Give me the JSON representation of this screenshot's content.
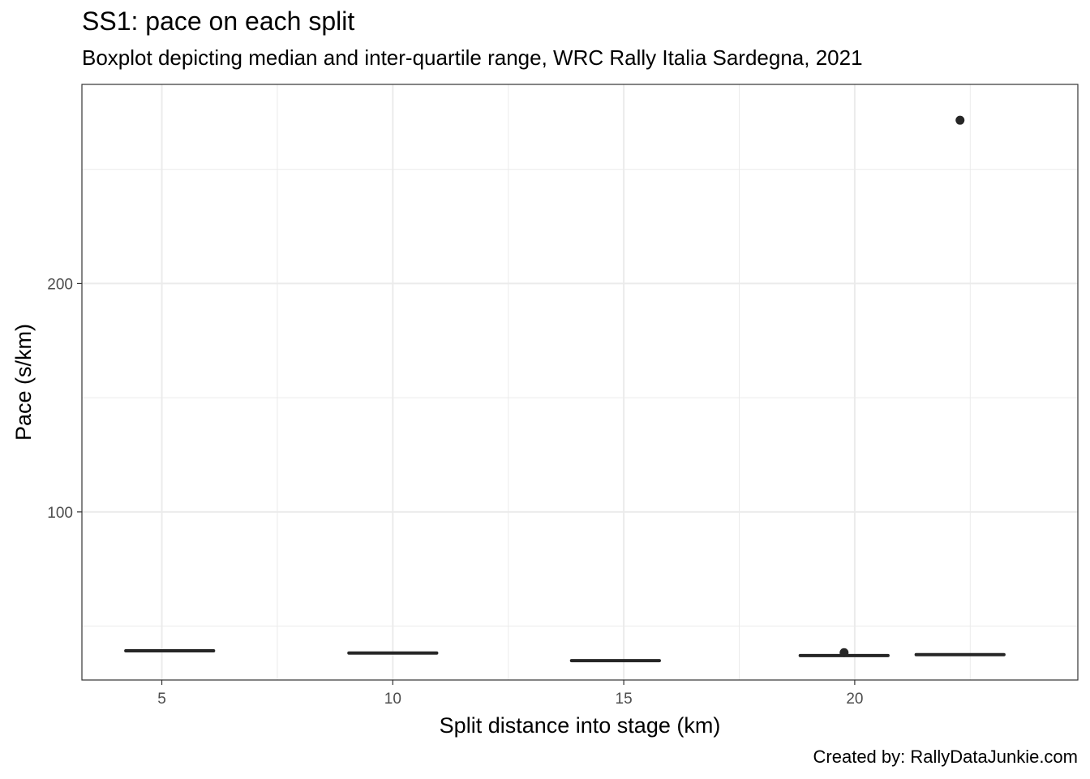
{
  "chart_data": {
    "type": "boxplot",
    "title": "SS1: pace on each split",
    "subtitle": "Boxplot depicting median and inter-quartile range, WRC Rally Italia Sardegna, 2021",
    "caption": "Created by: RallyDataJunkie.com",
    "xlabel": "Split distance into stage (km)",
    "ylabel": "Pace (s/km)",
    "xlim": [
      3.27,
      24.83
    ],
    "ylim": [
      26.4,
      287.2
    ],
    "x_ticks": [
      5,
      10,
      15,
      20
    ],
    "y_ticks": [
      100,
      200
    ],
    "grid": true,
    "boxes": [
      {
        "x": 5.17,
        "q1": 38.9,
        "median": 39.2,
        "q3": 39.5,
        "outliers": []
      },
      {
        "x": 10.0,
        "q1": 37.9,
        "median": 38.2,
        "q3": 38.5,
        "outliers": []
      },
      {
        "x": 14.82,
        "q1": 34.6,
        "median": 34.9,
        "q3": 35.2,
        "outliers": []
      },
      {
        "x": 19.77,
        "q1": 36.8,
        "median": 37.1,
        "q3": 37.4,
        "outliers": [
          38.4
        ]
      },
      {
        "x": 22.28,
        "q1": 37.2,
        "median": 37.5,
        "q3": 37.8,
        "outliers": [
          271.5
        ]
      }
    ],
    "colors": {
      "box": "#262626",
      "grid": "#ebebeb",
      "panel_border": "#333333"
    }
  }
}
